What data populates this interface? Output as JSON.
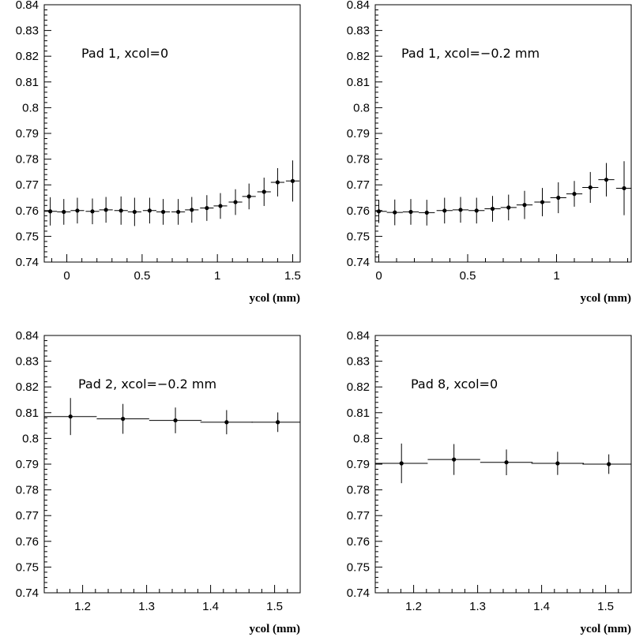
{
  "chart_data": [
    {
      "type": "scatter",
      "annotation": "Pad 1, xcol=0",
      "xlabel": "ycol (mm)",
      "ylabel": "",
      "xlim": [
        -0.15,
        1.55
      ],
      "ylim": [
        0.74,
        0.84
      ],
      "grid": false,
      "xticks": [
        0,
        0.5,
        1,
        1.5
      ],
      "xtick_labels": [
        "0",
        "0.5",
        "1",
        "1.5"
      ],
      "yticks": [
        0.74,
        0.75,
        0.76,
        0.77,
        0.78,
        0.79,
        0.8,
        0.81,
        0.82,
        0.83,
        0.84
      ],
      "ytick_labels": [
        "0.74",
        "0.75",
        "0.76",
        "0.77",
        "0.78",
        "0.79",
        "0.8",
        "0.81",
        "0.82",
        "0.83",
        "0.84"
      ],
      "x_halfwidth": 0.045,
      "points": [
        {
          "x": -0.11,
          "y": 0.7597,
          "yerr": 0.0055
        },
        {
          "x": -0.02,
          "y": 0.7595,
          "yerr": 0.005
        },
        {
          "x": 0.07,
          "y": 0.76,
          "yerr": 0.005
        },
        {
          "x": 0.17,
          "y": 0.7597,
          "yerr": 0.005
        },
        {
          "x": 0.26,
          "y": 0.7603,
          "yerr": 0.005
        },
        {
          "x": 0.36,
          "y": 0.76,
          "yerr": 0.0055
        },
        {
          "x": 0.45,
          "y": 0.7595,
          "yerr": 0.0055
        },
        {
          "x": 0.55,
          "y": 0.76,
          "yerr": 0.005
        },
        {
          "x": 0.64,
          "y": 0.7595,
          "yerr": 0.005
        },
        {
          "x": 0.74,
          "y": 0.7595,
          "yerr": 0.005
        },
        {
          "x": 0.83,
          "y": 0.7603,
          "yerr": 0.005
        },
        {
          "x": 0.93,
          "y": 0.761,
          "yerr": 0.005
        },
        {
          "x": 1.02,
          "y": 0.7618,
          "yerr": 0.005
        },
        {
          "x": 1.12,
          "y": 0.7633,
          "yerr": 0.005
        },
        {
          "x": 1.21,
          "y": 0.7655,
          "yerr": 0.005
        },
        {
          "x": 1.31,
          "y": 0.7673,
          "yerr": 0.0055
        },
        {
          "x": 1.4,
          "y": 0.771,
          "yerr": 0.0055
        },
        {
          "x": 1.5,
          "y": 0.7715,
          "yerr": 0.008
        }
      ]
    },
    {
      "type": "scatter",
      "annotation": "Pad 1, xcol=−0.2 mm",
      "xlabel": "ycol (mm)",
      "ylabel": "",
      "xlim": [
        -0.02,
        1.42
      ],
      "ylim": [
        0.74,
        0.84
      ],
      "grid": false,
      "xticks": [
        0,
        0.5,
        1
      ],
      "xtick_labels": [
        "0",
        "0.5",
        "1"
      ],
      "yticks": [
        0.74,
        0.75,
        0.76,
        0.77,
        0.78,
        0.79,
        0.8,
        0.81,
        0.82,
        0.83,
        0.84
      ],
      "ytick_labels": [
        "0.74",
        "0.75",
        "0.76",
        "0.77",
        "0.78",
        "0.79",
        "0.8",
        "0.81",
        "0.82",
        "0.83",
        "0.84"
      ],
      "x_halfwidth": 0.045,
      "points": [
        {
          "x": 0.0,
          "y": 0.7597,
          "yerr": 0.0045
        },
        {
          "x": 0.09,
          "y": 0.7593,
          "yerr": 0.005
        },
        {
          "x": 0.18,
          "y": 0.7595,
          "yerr": 0.005
        },
        {
          "x": 0.27,
          "y": 0.7592,
          "yerr": 0.005
        },
        {
          "x": 0.37,
          "y": 0.76,
          "yerr": 0.005
        },
        {
          "x": 0.46,
          "y": 0.7603,
          "yerr": 0.005
        },
        {
          "x": 0.55,
          "y": 0.76,
          "yerr": 0.005
        },
        {
          "x": 0.64,
          "y": 0.7607,
          "yerr": 0.005
        },
        {
          "x": 0.73,
          "y": 0.7612,
          "yerr": 0.005
        },
        {
          "x": 0.82,
          "y": 0.7622,
          "yerr": 0.0055
        },
        {
          "x": 0.92,
          "y": 0.7633,
          "yerr": 0.0055
        },
        {
          "x": 1.01,
          "y": 0.765,
          "yerr": 0.006
        },
        {
          "x": 1.1,
          "y": 0.7665,
          "yerr": 0.005
        },
        {
          "x": 1.19,
          "y": 0.769,
          "yerr": 0.006
        },
        {
          "x": 1.28,
          "y": 0.772,
          "yerr": 0.0065
        },
        {
          "x": 1.38,
          "y": 0.7687,
          "yerr": 0.0105
        }
      ]
    },
    {
      "type": "scatter",
      "annotation": "Pad 2, xcol=−0.2 mm",
      "xlabel": "ycol (mm)",
      "ylabel": "",
      "xlim": [
        1.14,
        1.54
      ],
      "ylim": [
        0.74,
        0.84
      ],
      "grid": false,
      "xticks": [
        1.2,
        1.3,
        1.4,
        1.5
      ],
      "xtick_labels": [
        "1.2",
        "1.3",
        "1.4",
        "1.5"
      ],
      "yticks": [
        0.74,
        0.75,
        0.76,
        0.77,
        0.78,
        0.79,
        0.8,
        0.81,
        0.82,
        0.83,
        0.84
      ],
      "ytick_labels": [
        "0.74",
        "0.75",
        "0.76",
        "0.77",
        "0.78",
        "0.79",
        "0.8",
        "0.81",
        "0.82",
        "0.83",
        "0.84"
      ],
      "x_halfwidth": 0.041,
      "points": [
        {
          "x": 1.181,
          "y": 0.8085,
          "yerr": 0.0072
        },
        {
          "x": 1.263,
          "y": 0.8076,
          "yerr": 0.0058
        },
        {
          "x": 1.345,
          "y": 0.807,
          "yerr": 0.005
        },
        {
          "x": 1.425,
          "y": 0.8063,
          "yerr": 0.0047
        },
        {
          "x": 1.505,
          "y": 0.8063,
          "yerr": 0.0038
        }
      ]
    },
    {
      "type": "scatter",
      "annotation": "Pad 8, xcol=0",
      "xlabel": "ycol (mm)",
      "ylabel": "",
      "xlim": [
        1.14,
        1.54
      ],
      "ylim": [
        0.74,
        0.84
      ],
      "grid": false,
      "xticks": [
        1.2,
        1.3,
        1.4,
        1.5
      ],
      "xtick_labels": [
        "1.2",
        "1.3",
        "1.4",
        "1.5"
      ],
      "yticks": [
        0.74,
        0.75,
        0.76,
        0.77,
        0.78,
        0.79,
        0.8,
        0.81,
        0.82,
        0.83,
        0.84
      ],
      "ytick_labels": [
        "0.74",
        "0.75",
        "0.76",
        "0.77",
        "0.78",
        "0.79",
        "0.8",
        "0.81",
        "0.82",
        "0.83",
        "0.84"
      ],
      "x_halfwidth": 0.041,
      "points": [
        {
          "x": 1.181,
          "y": 0.7903,
          "yerr": 0.0077
        },
        {
          "x": 1.263,
          "y": 0.7918,
          "yerr": 0.006
        },
        {
          "x": 1.345,
          "y": 0.7907,
          "yerr": 0.005
        },
        {
          "x": 1.425,
          "y": 0.7903,
          "yerr": 0.0045
        },
        {
          "x": 1.505,
          "y": 0.79,
          "yerr": 0.0038
        }
      ]
    }
  ]
}
